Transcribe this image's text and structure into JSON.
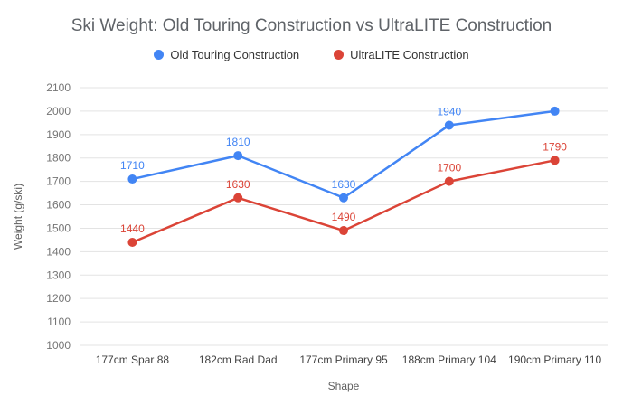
{
  "chart_data": {
    "type": "line",
    "title": "Ski Weight: Old Touring Construction vs UltraLITE Construction",
    "xlabel": "Shape",
    "ylabel": "Weight (g/ski)",
    "categories": [
      "177cm Spar 88",
      "182cm Rad Dad",
      "177cm Primary 95",
      "188cm Primary 104",
      "190cm Primary 110"
    ],
    "series": [
      {
        "name": "Old Touring Construction",
        "color": "#4285f4",
        "values": [
          1710,
          1810,
          1630,
          1940,
          2000
        ],
        "labels": [
          "1710",
          "1810",
          "1630",
          "1940",
          ""
        ]
      },
      {
        "name": "UltraLITE Construction",
        "color": "#db4437",
        "values": [
          1440,
          1630,
          1490,
          1700,
          1790
        ],
        "labels": [
          "1440",
          "1630",
          "1490",
          "1700",
          "1790"
        ]
      }
    ],
    "ylim": [
      1000,
      2100
    ],
    "ytick_step": 100,
    "grid": true,
    "legend_position": "top",
    "colors": {
      "gridline": "#e3e3e3",
      "y_tick_label": "#757575",
      "x_tick_label": "#424242",
      "axis_title": "#616161",
      "title": "#5f6368",
      "background": "#ffffff"
    }
  }
}
